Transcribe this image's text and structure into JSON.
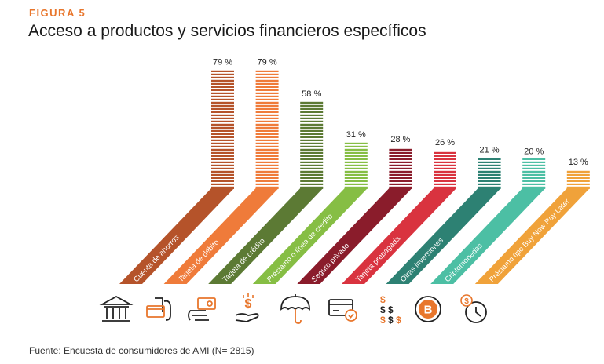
{
  "figure_label": "FIGURA 5",
  "title": "Acceso a productos y servicios financieros específicos",
  "source": "Fuente: Encuesta de consumidores de AMI (N= 2815)",
  "chart_data": {
    "type": "bar",
    "title": "Acceso a productos y servicios financieros específicos",
    "xlabel": "",
    "ylabel": "",
    "ylim": [
      0,
      100
    ],
    "unit": "%",
    "categories": [
      "Cuenta de ahorros",
      "Tarjeta de débito",
      "Tarjeta de crédito",
      "Préstamo o línea de crédito",
      "Seguro privado",
      "Tarjeta prepagada",
      "Otras inversiones",
      "Criptomonedas",
      "Préstamo tipo Buy Now Pay Later"
    ],
    "values": [
      79,
      79,
      58,
      31,
      28,
      26,
      21,
      20,
      13
    ],
    "value_labels": [
      "79 %",
      "79 %",
      "58 %",
      "31 %",
      "28 %",
      "26 %",
      "21 %",
      "20 %",
      "13 %"
    ],
    "colors": [
      "#b5532a",
      "#ef7b3a",
      "#5c7a34",
      "#86be44",
      "#8a1c2b",
      "#d9333f",
      "#2d8173",
      "#4cbfa4",
      "#f0a23a"
    ],
    "icons": [
      "bank-icon",
      "debit-card-icon",
      "credit-card-icon",
      "loan-icon",
      "umbrella-insurance-icon",
      "prepaid-card-icon",
      "investments-icon",
      "bitcoin-icon",
      "bnpl-clock-icon"
    ]
  }
}
